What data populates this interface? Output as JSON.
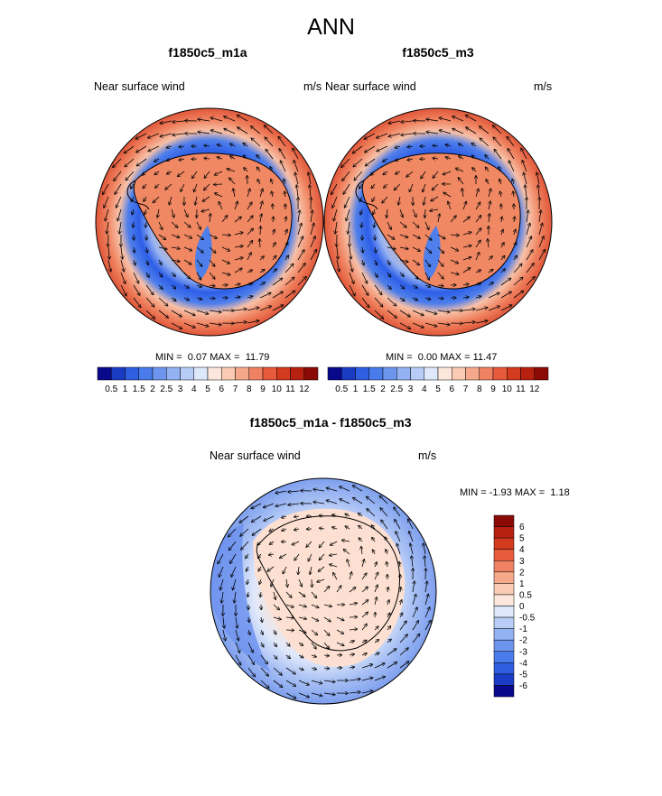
{
  "title": "ANN",
  "panels": [
    {
      "title": "f1850c5_m1a",
      "field": "Near surface wind",
      "units": "m/s",
      "min_label": "MIN =",
      "min": "0.07",
      "max_label": "MAX =",
      "max": "11.79"
    },
    {
      "title": "f1850c5_m3",
      "field": "Near surface wind",
      "units": "m/s",
      "min_label": "MIN =",
      "min": "0.00",
      "max_label": "MAX =",
      "max": "11.47"
    },
    {
      "title": "f1850c5_m1a - f1850c5_m3",
      "field": "Near surface wind",
      "units": "m/s",
      "min_label": "MIN =",
      "min": "-1.93",
      "max_label": "MAX =",
      "max": "1.18"
    }
  ],
  "colorbar_top": {
    "labels": [
      "0.5",
      "1",
      "1.5",
      "2",
      "2.5",
      "3",
      "4",
      "5",
      "6",
      "7",
      "8",
      "9",
      "10",
      "11",
      "12"
    ],
    "colors": [
      "#08088c",
      "#1a3bc4",
      "#2f5fe0",
      "#4a7bea",
      "#6d95ee",
      "#92b2f3",
      "#b7cdf7",
      "#dde8fb",
      "#fde7dc",
      "#fbcbb4",
      "#f6a98a",
      "#ef8262",
      "#e75b3c",
      "#d43a1e",
      "#b82010",
      "#8c0a06"
    ]
  },
  "colorbar_diff": {
    "labels": [
      "6",
      "5",
      "4",
      "3",
      "2",
      "1",
      "0.5",
      "0",
      "-0.5",
      "-1",
      "-2",
      "-3",
      "-4",
      "-5",
      "-6"
    ],
    "colors": [
      "#8c0a06",
      "#b82010",
      "#d43a1e",
      "#e75b3c",
      "#ef8262",
      "#f6a98a",
      "#fbcbb4",
      "#fde7dc",
      "#dde8fb",
      "#b7cdf7",
      "#92b2f3",
      "#6d95ee",
      "#4a7bea",
      "#2f5fe0",
      "#1a3bc4",
      "#08088c"
    ]
  },
  "colors": {
    "strong": "#e0573a",
    "mid": "#f4b296",
    "weak": "#2d5ee8",
    "pale": "#dfe8fb",
    "land_orange": "#f28a64"
  }
}
